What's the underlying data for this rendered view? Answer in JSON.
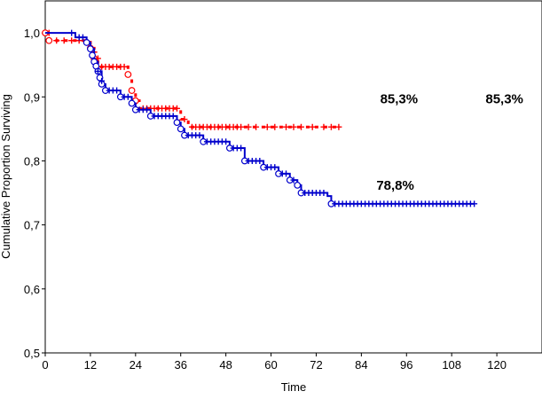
{
  "chart_data": {
    "type": "line",
    "title": "",
    "xlabel": "Time",
    "ylabel": "Cumulative Proportion Surviving",
    "xlim": [
      0,
      132
    ],
    "ylim": [
      0.5,
      1.05
    ],
    "xticks": [
      0,
      12,
      24,
      36,
      48,
      60,
      72,
      84,
      96,
      108,
      120
    ],
    "xtick_labels": [
      "0",
      "12",
      "24",
      "36",
      "48",
      "60",
      "72",
      "84",
      "96",
      "108",
      "120"
    ],
    "yticks": [
      0.5,
      0.6,
      0.7,
      0.8,
      0.9,
      1.0
    ],
    "ytick_labels": [
      "0,5",
      "0,6",
      "0,7",
      "0,8",
      "0,9",
      "1,0"
    ],
    "grid": false,
    "colors": {
      "red": "#ff0000",
      "blue": "#0000cc"
    },
    "series": [
      {
        "color": "#ff0000",
        "line_style": "dashed",
        "step_points": [
          [
            0,
            1.0
          ],
          [
            1,
            0.988
          ],
          [
            12,
            0.976
          ],
          [
            13,
            0.96
          ],
          [
            14,
            0.947
          ],
          [
            22,
            0.935
          ],
          [
            23,
            0.91
          ],
          [
            24,
            0.894
          ],
          [
            25,
            0.882
          ],
          [
            36,
            0.865
          ],
          [
            38,
            0.853
          ],
          [
            78,
            0.853
          ]
        ],
        "events": [
          [
            0,
            1.0
          ],
          [
            1,
            0.988
          ],
          [
            12,
            0.976
          ],
          [
            13,
            0.96
          ],
          [
            22,
            0.935
          ],
          [
            23,
            0.91
          ],
          [
            24,
            0.894
          ]
        ],
        "censored": [
          [
            1,
            1.0
          ],
          [
            3,
            0.988
          ],
          [
            5,
            0.988
          ],
          [
            7,
            0.988
          ],
          [
            9,
            0.988
          ],
          [
            13,
            0.97
          ],
          [
            14,
            0.96
          ],
          [
            15,
            0.947
          ],
          [
            16,
            0.947
          ],
          [
            17,
            0.947
          ],
          [
            18,
            0.947
          ],
          [
            19,
            0.947
          ],
          [
            20,
            0.947
          ],
          [
            21,
            0.947
          ],
          [
            26,
            0.882
          ],
          [
            27,
            0.882
          ],
          [
            28,
            0.882
          ],
          [
            29,
            0.882
          ],
          [
            30,
            0.882
          ],
          [
            31,
            0.882
          ],
          [
            32,
            0.882
          ],
          [
            33,
            0.882
          ],
          [
            34,
            0.882
          ],
          [
            35,
            0.882
          ],
          [
            37,
            0.865
          ],
          [
            39,
            0.853
          ],
          [
            40,
            0.853
          ],
          [
            41,
            0.853
          ],
          [
            42,
            0.853
          ],
          [
            43,
            0.853
          ],
          [
            44,
            0.853
          ],
          [
            45,
            0.853
          ],
          [
            46,
            0.853
          ],
          [
            47,
            0.853
          ],
          [
            48,
            0.853
          ],
          [
            49,
            0.853
          ],
          [
            50,
            0.853
          ],
          [
            51,
            0.853
          ],
          [
            52,
            0.853
          ],
          [
            54,
            0.853
          ],
          [
            56,
            0.853
          ],
          [
            59,
            0.853
          ],
          [
            61,
            0.853
          ],
          [
            64,
            0.853
          ],
          [
            66,
            0.853
          ],
          [
            68,
            0.853
          ],
          [
            71,
            0.853
          ],
          [
            74,
            0.853
          ],
          [
            76,
            0.853
          ],
          [
            78,
            0.853
          ]
        ]
      },
      {
        "color": "#0000cc",
        "line_style": "solid",
        "step_points": [
          [
            0,
            1.0
          ],
          [
            7,
            1.0
          ],
          [
            8,
            0.993
          ],
          [
            11,
            0.985
          ],
          [
            12,
            0.975
          ],
          [
            13,
            0.955
          ],
          [
            14,
            0.94
          ],
          [
            15,
            0.92
          ],
          [
            16,
            0.91
          ],
          [
            20,
            0.9
          ],
          [
            23,
            0.89
          ],
          [
            24,
            0.88
          ],
          [
            28,
            0.87
          ],
          [
            35,
            0.86
          ],
          [
            36,
            0.85
          ],
          [
            37,
            0.84
          ],
          [
            42,
            0.83
          ],
          [
            49,
            0.82
          ],
          [
            53,
            0.8
          ],
          [
            58,
            0.79
          ],
          [
            62,
            0.78
          ],
          [
            65,
            0.77
          ],
          [
            67,
            0.762
          ],
          [
            68,
            0.75
          ],
          [
            75,
            0.745
          ],
          [
            76,
            0.733
          ],
          [
            114,
            0.733
          ]
        ],
        "events": [
          [
            11,
            0.985
          ],
          [
            12,
            0.975
          ],
          [
            12.5,
            0.965
          ],
          [
            13,
            0.955
          ],
          [
            13.5,
            0.948
          ],
          [
            14,
            0.94
          ],
          [
            14.5,
            0.93
          ],
          [
            15,
            0.92
          ],
          [
            16,
            0.91
          ],
          [
            20,
            0.9
          ],
          [
            23,
            0.89
          ],
          [
            24,
            0.88
          ],
          [
            28,
            0.87
          ],
          [
            35,
            0.86
          ],
          [
            36,
            0.85
          ],
          [
            37,
            0.84
          ],
          [
            42,
            0.83
          ],
          [
            49,
            0.82
          ],
          [
            53,
            0.8
          ],
          [
            58,
            0.79
          ],
          [
            62,
            0.78
          ],
          [
            65,
            0.77
          ],
          [
            67,
            0.762
          ],
          [
            68,
            0.75
          ],
          [
            76,
            0.733
          ]
        ],
        "censored": [
          [
            7,
            1.0
          ],
          [
            9,
            0.993
          ],
          [
            10,
            0.993
          ],
          [
            14,
            0.94
          ],
          [
            15,
            0.925
          ],
          [
            17,
            0.91
          ],
          [
            18,
            0.91
          ],
          [
            19,
            0.91
          ],
          [
            21,
            0.9
          ],
          [
            22,
            0.9
          ],
          [
            25,
            0.88
          ],
          [
            26,
            0.88
          ],
          [
            27,
            0.88
          ],
          [
            29,
            0.87
          ],
          [
            30,
            0.87
          ],
          [
            31,
            0.87
          ],
          [
            32,
            0.87
          ],
          [
            33,
            0.87
          ],
          [
            34,
            0.87
          ],
          [
            38,
            0.84
          ],
          [
            39,
            0.84
          ],
          [
            40,
            0.84
          ],
          [
            41,
            0.84
          ],
          [
            43,
            0.83
          ],
          [
            44,
            0.83
          ],
          [
            45,
            0.83
          ],
          [
            46,
            0.83
          ],
          [
            47,
            0.83
          ],
          [
            48,
            0.83
          ],
          [
            50,
            0.82
          ],
          [
            51,
            0.82
          ],
          [
            52,
            0.82
          ],
          [
            54,
            0.8
          ],
          [
            55,
            0.8
          ],
          [
            56,
            0.8
          ],
          [
            57,
            0.8
          ],
          [
            59,
            0.79
          ],
          [
            60,
            0.79
          ],
          [
            61,
            0.79
          ],
          [
            63,
            0.78
          ],
          [
            64,
            0.78
          ],
          [
            66,
            0.77
          ],
          [
            69,
            0.75
          ],
          [
            70,
            0.75
          ],
          [
            71,
            0.75
          ],
          [
            72,
            0.75
          ],
          [
            73,
            0.75
          ],
          [
            74,
            0.75
          ],
          [
            77,
            0.733
          ],
          [
            78,
            0.733
          ],
          [
            79,
            0.733
          ],
          [
            80,
            0.733
          ],
          [
            81,
            0.733
          ],
          [
            82,
            0.733
          ],
          [
            83,
            0.733
          ],
          [
            84,
            0.733
          ],
          [
            85,
            0.733
          ],
          [
            86,
            0.733
          ],
          [
            87,
            0.733
          ],
          [
            88,
            0.733
          ],
          [
            89,
            0.733
          ],
          [
            90,
            0.733
          ],
          [
            91,
            0.733
          ],
          [
            92,
            0.733
          ],
          [
            93,
            0.733
          ],
          [
            94,
            0.733
          ],
          [
            95,
            0.733
          ],
          [
            96,
            0.733
          ],
          [
            97,
            0.733
          ],
          [
            98,
            0.733
          ],
          [
            99,
            0.733
          ],
          [
            100,
            0.733
          ],
          [
            101,
            0.733
          ],
          [
            102,
            0.733
          ],
          [
            103,
            0.733
          ],
          [
            104,
            0.733
          ],
          [
            105,
            0.733
          ],
          [
            106,
            0.733
          ],
          [
            107,
            0.733
          ],
          [
            108,
            0.733
          ],
          [
            109,
            0.733
          ],
          [
            110,
            0.733
          ],
          [
            111,
            0.733
          ],
          [
            112,
            0.733
          ],
          [
            113,
            0.733
          ],
          [
            114,
            0.733
          ]
        ]
      }
    ],
    "annotations": [
      {
        "text": "85,3%",
        "x": 89,
        "y": 0.89
      },
      {
        "text": "85,3%",
        "x": 117,
        "y": 0.89
      },
      {
        "text": "78,8%",
        "x": 88,
        "y": 0.755
      }
    ]
  }
}
